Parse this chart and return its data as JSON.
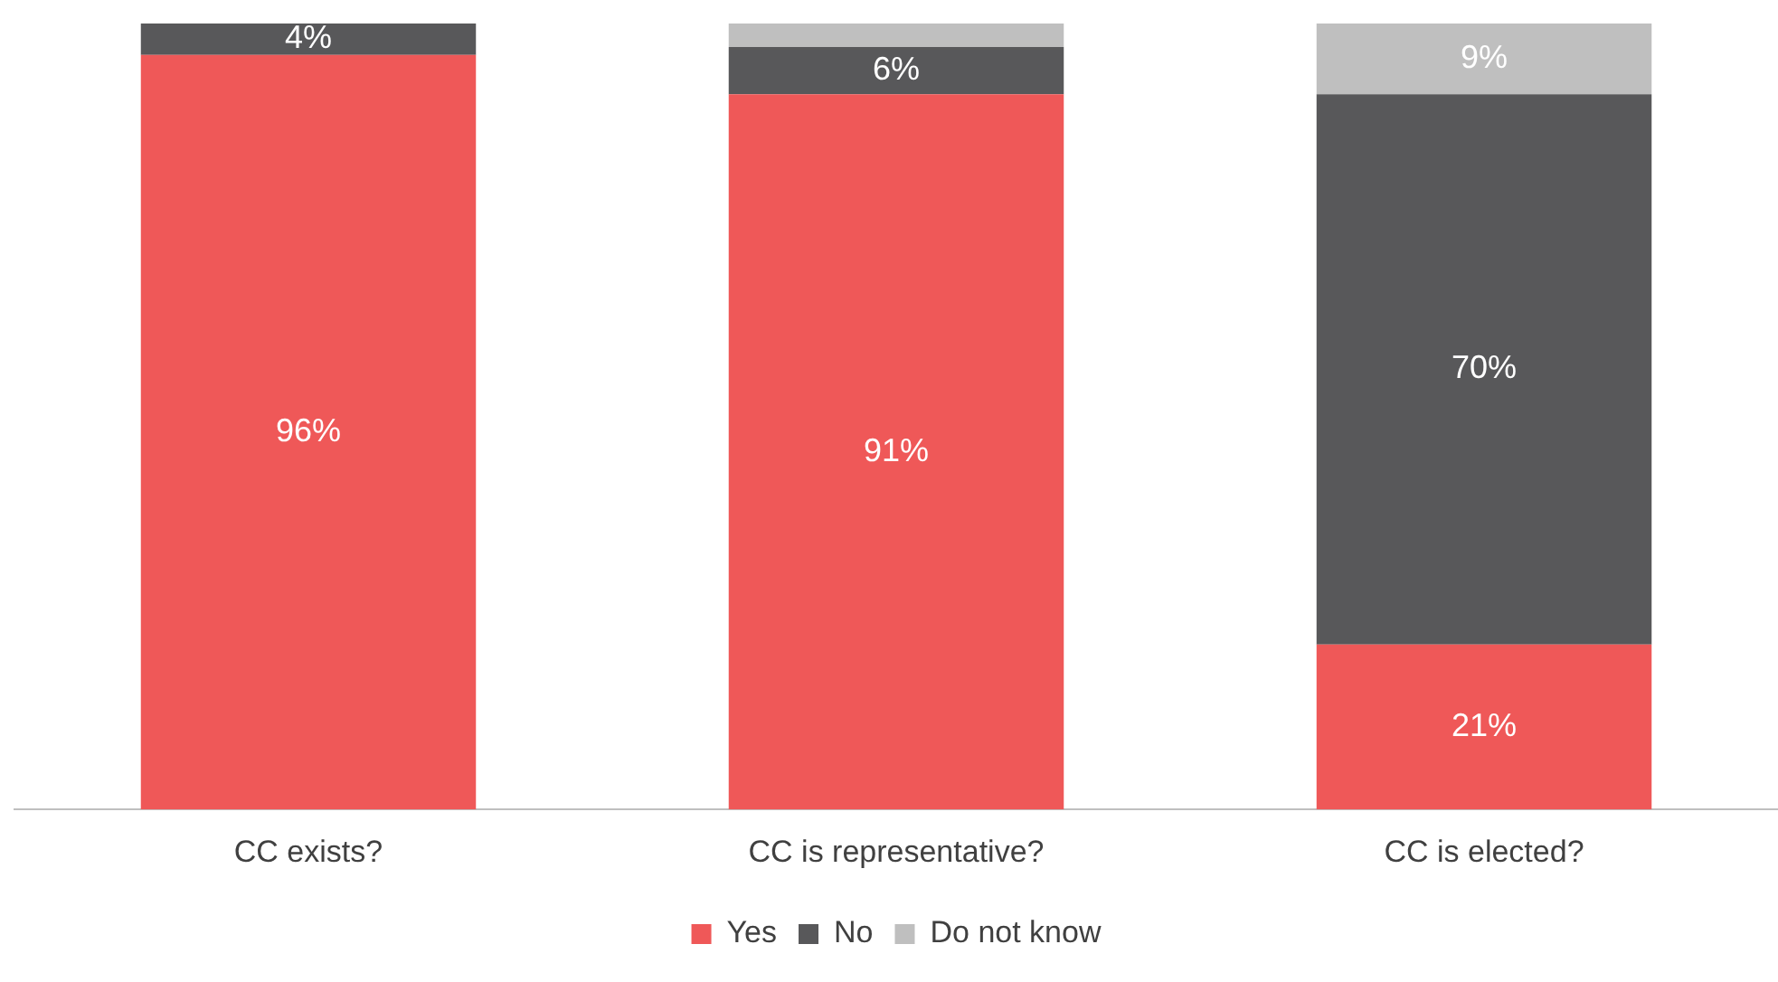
{
  "chart_data": {
    "type": "bar",
    "stacked": true,
    "categories": [
      "CC exists?",
      "CC is representative?",
      "CC is elected?"
    ],
    "series": [
      {
        "name": "Yes",
        "color": "#ef5858",
        "values": [
          96,
          91,
          21
        ],
        "value_labels": [
          "96%",
          "91%",
          "21%"
        ]
      },
      {
        "name": "No",
        "color": "#58585a",
        "values": [
          4,
          6,
          70
        ],
        "value_labels": [
          "4%",
          "6%",
          "70%"
        ]
      },
      {
        "name": "Do not know",
        "color": "#bfbfbf",
        "values": [
          0,
          3,
          9
        ],
        "value_labels": [
          null,
          null,
          "9%"
        ]
      }
    ],
    "legend": "bottom",
    "grid": false
  }
}
